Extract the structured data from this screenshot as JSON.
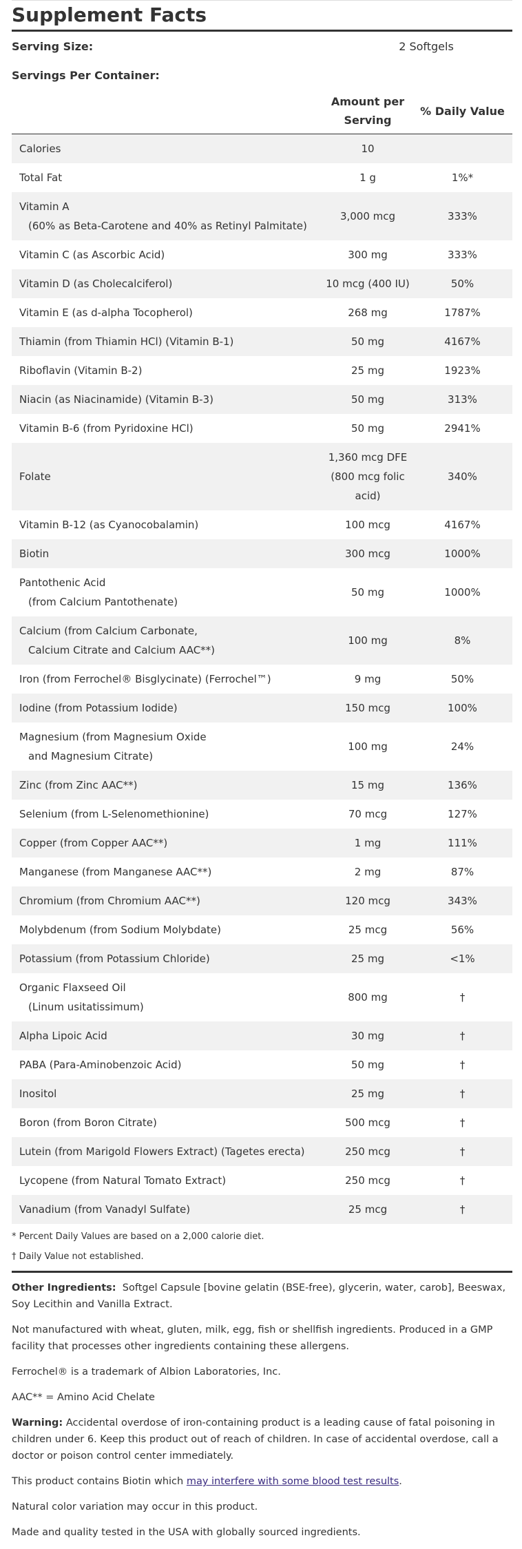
{
  "header": {
    "title": "Supplement Facts",
    "serving_size_label": "Serving Size:",
    "serving_size": "2 Softgels",
    "servings_per_container_label": "Servings Per Container:",
    "col_amount": "Amount per Serving",
    "col_dv": "% Daily Value"
  },
  "table": {
    "rows": [
      {
        "name": "Calories",
        "amount": "10",
        "dv": ""
      },
      {
        "name": "Total Fat",
        "amount": "1 g",
        "dv": "1%*"
      },
      {
        "name": "Vitamin A",
        "sub": "(60% as Beta-Carotene and 40% as Retinyl Palmitate)",
        "amount": "3,000 mcg",
        "dv": "333%"
      },
      {
        "name": "Vitamin C (as Ascorbic Acid)",
        "amount": "300 mg",
        "dv": "333%"
      },
      {
        "name": "Vitamin D (as Cholecalciferol)",
        "amount": "10 mcg (400 IU)",
        "dv": "50%"
      },
      {
        "name": "Vitamin E (as d-alpha Tocopherol)",
        "amount": "268 mg",
        "dv": "1787%"
      },
      {
        "name": "Thiamin (from Thiamin HCl) (Vitamin B-1)",
        "amount": "50 mg",
        "dv": "4167%"
      },
      {
        "name": "Riboflavin (Vitamin B-2)",
        "amount": "25 mg",
        "dv": "1923%"
      },
      {
        "name": "Niacin (as Niacinamide) (Vitamin B-3)",
        "amount": "50 mg",
        "dv": "313%"
      },
      {
        "name": "Vitamin B-6 (from Pyridoxine HCl)",
        "amount": "50 mg",
        "dv": "2941%"
      },
      {
        "name": "Folate",
        "amount": "1,360 mcg DFE (800 mcg folic acid)",
        "dv": "340%"
      },
      {
        "name": "Vitamin B-12 (as Cyanocobalamin)",
        "amount": "100 mcg",
        "dv": "4167%"
      },
      {
        "name": "Biotin",
        "amount": "300 mcg",
        "dv": "1000%"
      },
      {
        "name": "Pantothenic Acid",
        "sub": "(from Calcium Pantothenate)",
        "amount": "50 mg",
        "dv": "1000%"
      },
      {
        "name": "Calcium (from Calcium Carbonate,",
        "sub": "Calcium Citrate and Calcium AAC**)",
        "amount": "100 mg",
        "dv": "8%"
      },
      {
        "name": "Iron (from Ferrochel® Bisglycinate) (Ferrochel™)",
        "amount": "9 mg",
        "dv": "50%"
      },
      {
        "name": "Iodine (from Potassium Iodide)",
        "amount": "150 mcg",
        "dv": "100%"
      },
      {
        "name": "Magnesium (from Magnesium Oxide",
        "sub": "and Magnesium Citrate)",
        "amount": "100 mg",
        "dv": "24%"
      },
      {
        "name": "Zinc (from Zinc AAC**)",
        "amount": "15 mg",
        "dv": "136%"
      },
      {
        "name": "Selenium (from L-Selenomethionine)",
        "amount": "70 mcg",
        "dv": "127%"
      },
      {
        "name": "Copper (from Copper AAC**)",
        "amount": "1 mg",
        "dv": "111%"
      },
      {
        "name": "Manganese (from Manganese AAC**)",
        "amount": "2 mg",
        "dv": "87%"
      },
      {
        "name": "Chromium (from Chromium AAC**)",
        "amount": "120 mcg",
        "dv": "343%"
      },
      {
        "name": "Molybdenum (from Sodium Molybdate)",
        "amount": "25 mcg",
        "dv": "56%"
      },
      {
        "name": "Potassium (from Potassium Chloride)",
        "amount": "25 mg",
        "dv": "<1%"
      },
      {
        "name": "Organic Flaxseed Oil",
        "sub": "(Linum usitatissimum)",
        "amount": "800 mg",
        "dv": "†"
      },
      {
        "name": "Alpha Lipoic Acid",
        "amount": "30 mg",
        "dv": "†"
      },
      {
        "name": "PABA (Para-Aminobenzoic Acid)",
        "amount": "50 mg",
        "dv": "†"
      },
      {
        "name": "Inositol",
        "amount": "25 mg",
        "dv": "†"
      },
      {
        "name": "Boron (from Boron Citrate)",
        "amount": "500 mcg",
        "dv": "†"
      },
      {
        "name": "Lutein (from Marigold Flowers Extract) (Tagetes erecta)",
        "amount": "250 mcg",
        "dv": "†"
      },
      {
        "name": "Lycopene (from Natural Tomato Extract)",
        "amount": "250 mcg",
        "dv": "†"
      },
      {
        "name": "Vanadium (from Vanadyl Sulfate)",
        "amount": "25 mcg",
        "dv": "†"
      }
    ]
  },
  "footnotes": [
    "* Percent Daily Values are based on a 2,000 calorie diet.",
    "† Daily Value not established."
  ],
  "info": {
    "other_label": "Other Ingredients:",
    "other_text": "Softgel Capsule [bovine gelatin (BSE-free), glycerin, water, carob], Beeswax, Soy Lecithin and Vanilla Extract.",
    "allergen": "Not manufactured with wheat, gluten, milk, egg, fish or shellfish ingredients. Produced in a GMP facility that processes other ingredients containing these allergens.",
    "trademark": "Ferrochel® is a trademark of Albion Laboratories, Inc.",
    "aac": "AAC** = Amino Acid Chelate",
    "warning_label": "Warning:",
    "warning_text": "Accidental overdose of iron-containing product is a leading cause of fatal poisoning in children under 6. Keep this product out of reach of children. In case of accidental overdose, call a doctor or poison control center immediately.",
    "biotin_text": "This product contains Biotin which",
    "biotin_link": "may interfere with some blood test results",
    "biotin_end": ".",
    "color": "Natural color variation may occur in this product.",
    "made": "Made and quality tested in the USA with globally sourced ingredients."
  }
}
